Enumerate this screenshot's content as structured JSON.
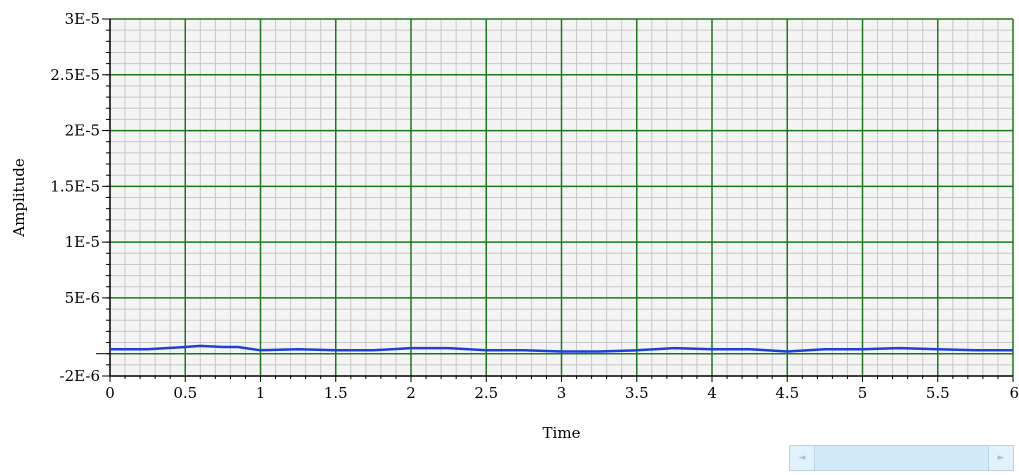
{
  "chart_data": {
    "type": "line",
    "title": "",
    "xlabel": "Time",
    "ylabel": "Amplitude",
    "xlim": [
      0,
      6
    ],
    "ylim": [
      -2e-06,
      3e-05
    ],
    "x_ticks": [
      0,
      0.5,
      1,
      1.5,
      2,
      2.5,
      3,
      3.5,
      4,
      4.5,
      5,
      5.5,
      6
    ],
    "x_tick_labels": [
      "0",
      "0.5",
      "1",
      "1.5",
      "2",
      "2.5",
      "3",
      "3.5",
      "4",
      "4.5",
      "5",
      "5.5",
      "6"
    ],
    "y_ticks": [
      -2e-06,
      5e-06,
      1e-05,
      1.5e-05,
      2e-05,
      2.5e-05,
      3e-05
    ],
    "y_tick_labels": [
      "-2E-6",
      "5E-6",
      "1E-5",
      "1.5E-5",
      "2E-5",
      "2.5E-5",
      "3E-5"
    ],
    "grid": true,
    "minor_grid": true,
    "series": [
      {
        "color": "#1f3fd6",
        "x": [
          0,
          0.25,
          0.5,
          0.6,
          0.75,
          0.85,
          1.0,
          1.25,
          1.5,
          1.75,
          2.0,
          2.25,
          2.5,
          2.75,
          3.0,
          3.25,
          3.5,
          3.75,
          4.0,
          4.25,
          4.5,
          4.75,
          5.0,
          5.25,
          5.5,
          5.75,
          6.0
        ],
        "y": [
          4e-07,
          4e-07,
          6e-07,
          7e-07,
          6e-07,
          6e-07,
          3e-07,
          4e-07,
          3e-07,
          3e-07,
          5e-07,
          5e-07,
          3e-07,
          3e-07,
          2e-07,
          2e-07,
          3e-07,
          5e-07,
          4e-07,
          4e-07,
          2e-07,
          4e-07,
          4e-07,
          5e-07,
          4e-07,
          3e-07,
          3e-07
        ]
      }
    ],
    "colors": {
      "major_grid": "#1a7a1a",
      "minor_grid": "#c8c8c8",
      "plot_background": "#f4f4f4",
      "axis": "#000000"
    }
  },
  "scrollbar": {
    "left_arrow": "◄",
    "right_arrow": "►"
  }
}
